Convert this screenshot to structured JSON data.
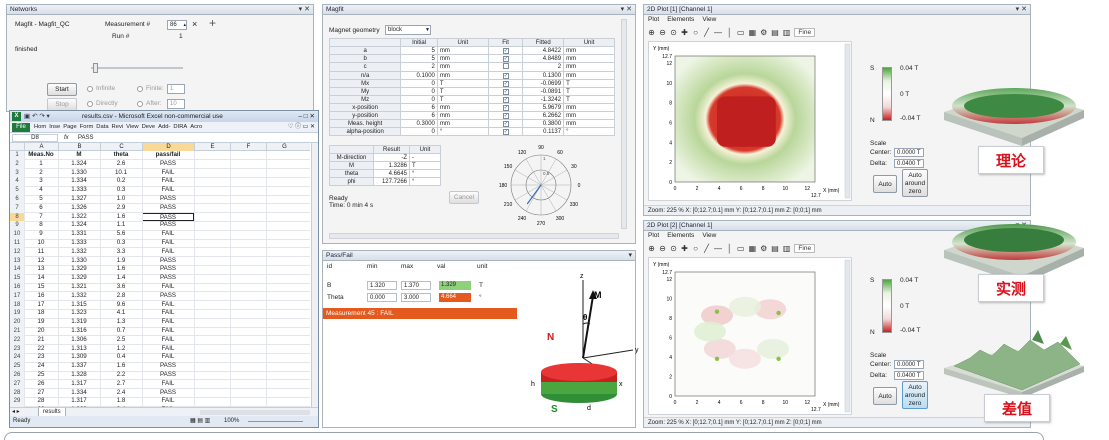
{
  "networks": {
    "title": "Networks",
    "node_name": "Magfit - Magfit_QC",
    "measurement_label": "Measurement #",
    "measurement_value": "86",
    "close_glyph": "×",
    "add_glyph": "+",
    "run_label": "Run #",
    "run_value": "1",
    "status": "finished",
    "start_label": "Start",
    "stop_label": "Stop",
    "infinite_label": "Infinite",
    "directly_label": "Directly",
    "finite_label": "Finite:",
    "finite_value": "1",
    "after_label": "After:",
    "after_value": "10"
  },
  "excel": {
    "title": "results.csv - Microsoft Excel non-commercial use",
    "ribbon_file": "File",
    "ribbon_tabs": [
      "Hom",
      "Inse",
      "Page",
      "Form",
      "Data",
      "Revi",
      "View",
      "Deve",
      "Add-",
      "DIRA",
      "Acro"
    ],
    "name_box": "D8",
    "fx": "fx",
    "formula_value": "PASS",
    "col_letters": [
      "A",
      "B",
      "C",
      "D",
      "E",
      "F",
      "G"
    ],
    "headers": [
      "Meas.No",
      "M",
      "theta",
      "pass/fail"
    ],
    "rows": [
      [
        "1",
        "1.324",
        "2.6",
        "PASS"
      ],
      [
        "2",
        "1.330",
        "10.1",
        "FAIL"
      ],
      [
        "3",
        "1.334",
        "0.2",
        "FAIL"
      ],
      [
        "4",
        "1.333",
        "0.3",
        "FAIL"
      ],
      [
        "5",
        "1.327",
        "1.0",
        "PASS"
      ],
      [
        "6",
        "1.326",
        "2.9",
        "PASS"
      ],
      [
        "7",
        "1.322",
        "1.6",
        "PASS"
      ],
      [
        "8",
        "1.324",
        "1.1",
        "PASS"
      ],
      [
        "9",
        "1.331",
        "5.6",
        "FAIL"
      ],
      [
        "10",
        "1.333",
        "0.3",
        "FAIL"
      ],
      [
        "11",
        "1.332",
        "3.3",
        "FAIL"
      ],
      [
        "12",
        "1.330",
        "1.9",
        "PASS"
      ],
      [
        "13",
        "1.329",
        "1.6",
        "PASS"
      ],
      [
        "14",
        "1.329",
        "1.4",
        "PASS"
      ],
      [
        "15",
        "1.321",
        "3.6",
        "FAIL"
      ],
      [
        "16",
        "1.332",
        "2.8",
        "PASS"
      ],
      [
        "17",
        "1.315",
        "9.6",
        "FAIL"
      ],
      [
        "18",
        "1.323",
        "4.1",
        "FAIL"
      ],
      [
        "19",
        "1.319",
        "1.3",
        "FAIL"
      ],
      [
        "20",
        "1.316",
        "0.7",
        "FAIL"
      ],
      [
        "21",
        "1.306",
        "2.5",
        "FAIL"
      ],
      [
        "22",
        "1.313",
        "1.2",
        "FAIL"
      ],
      [
        "23",
        "1.309",
        "0.4",
        "FAIL"
      ],
      [
        "24",
        "1.337",
        "1.6",
        "PASS"
      ],
      [
        "25",
        "1.328",
        "2.2",
        "PASS"
      ],
      [
        "26",
        "1.317",
        "2.7",
        "FAIL"
      ],
      [
        "27",
        "1.334",
        "2.4",
        "PASS"
      ],
      [
        "28",
        "1.317",
        "1.8",
        "FAIL"
      ],
      [
        "29",
        "1.303",
        "3.4",
        "FAIL"
      ]
    ],
    "sheet_tab": "results",
    "status_ready": "Ready",
    "zoom": "100%"
  },
  "magfit": {
    "title": "Magfit",
    "geometry_label": "Magnet geometry",
    "geometry_value": "block",
    "param_headers": [
      "",
      "Initial",
      "Unit",
      "Fit",
      "Fitted",
      "Unit"
    ],
    "params": [
      {
        "name": "a",
        "initial": "5",
        "unit": "mm",
        "fit": true,
        "fitted": "4.8422",
        "funit": "mm"
      },
      {
        "name": "b",
        "initial": "5",
        "unit": "mm",
        "fit": true,
        "fitted": "4.8489",
        "funit": "mm"
      },
      {
        "name": "c",
        "initial": "2",
        "unit": "mm",
        "fit": false,
        "fitted": "2",
        "funit": "mm"
      },
      {
        "name": "n/a",
        "initial": "0.1000",
        "unit": "mm",
        "fit": true,
        "fitted": "0.1300",
        "funit": "mm"
      },
      {
        "name": "Mx",
        "initial": "0",
        "unit": "T",
        "fit": true,
        "fitted": "-0.0699",
        "funit": "T"
      },
      {
        "name": "My",
        "initial": "0",
        "unit": "T",
        "fit": true,
        "fitted": "-0.0891",
        "funit": "T"
      },
      {
        "name": "Mz",
        "initial": "0",
        "unit": "T",
        "fit": true,
        "fitted": "-1.3242",
        "funit": "T"
      },
      {
        "name": "x-position",
        "initial": "6",
        "unit": "mm",
        "fit": true,
        "fitted": "5.9679",
        "funit": "mm"
      },
      {
        "name": "y-position",
        "initial": "6",
        "unit": "mm",
        "fit": true,
        "fitted": "6.2662",
        "funit": "mm"
      },
      {
        "name": "Meas. height",
        "initial": "0.3000",
        "unit": "mm",
        "fit": true,
        "fitted": "0.3800",
        "funit": "mm"
      },
      {
        "name": "alpha-position",
        "initial": "0",
        "unit": "°",
        "fit": true,
        "fitted": "0.1137",
        "funit": "°"
      }
    ],
    "result_headers": [
      "",
      "Result",
      "Unit"
    ],
    "results": [
      {
        "name": "M-direction",
        "value": "-Z",
        "unit": "-"
      },
      {
        "name": "M",
        "value": "1.3286",
        "unit": "T"
      },
      {
        "name": "theta",
        "value": "4.6645",
        "unit": "°"
      },
      {
        "name": "phi",
        "value": "127.7266",
        "unit": "°"
      }
    ],
    "ready_label": "Ready",
    "time_label": "Time: 0 min 4 s",
    "cancel_label": "Cancel",
    "polar_labels": [
      "90",
      "60",
      "30",
      "0",
      "330",
      "300",
      "270",
      "240",
      "210",
      "180",
      "150",
      "120"
    ],
    "polar_radii": [
      "0.5",
      "1"
    ]
  },
  "passfail": {
    "title": "Pass/Fail",
    "headers": [
      "id",
      "min",
      "max",
      "val",
      "unit"
    ],
    "rows": [
      {
        "id": "B",
        "min": "1.320",
        "max": "1.370",
        "val": "1.329",
        "unit": "T",
        "ok": true
      },
      {
        "id": "Theta",
        "min": "0.000",
        "max": "3.000",
        "val": "4.664",
        "unit": "°",
        "ok": false
      }
    ],
    "status": "Measurement 45 : FAIL"
  },
  "diagram": {
    "z": "z",
    "y": "y",
    "x": "x",
    "M": "M",
    "theta": "θ",
    "N": "N",
    "S": "S",
    "h": "h",
    "d": "d"
  },
  "plot1": {
    "title": "2D Plot [1] [Channel 1]",
    "menu": [
      "Plot",
      "Elements",
      "View"
    ],
    "fine_label": "Fine",
    "y_unit": "Y (mm)",
    "x_unit": "X (mm)",
    "y_ticks": [
      "12.7",
      "12",
      "10",
      "8",
      "6",
      "4",
      "2",
      "0"
    ],
    "x_ticks": [
      "0",
      "2",
      "4",
      "6",
      "8",
      "10",
      "12"
    ],
    "x_max": "12.7",
    "legend_top": "0.04 T",
    "legend_mid": "0 T",
    "legend_bot": "-0.04 T",
    "legend_S": "S",
    "legend_N": "N",
    "scale_label": "Scale",
    "center_label": "Center:",
    "center_value": "0.0000 T",
    "delta_label": "Delta:",
    "delta_value": "0.0400 T",
    "auto_label": "Auto",
    "auto_zero_label": "Auto around zero",
    "status": "Zoom: 225 %      X: [0;12.7;0.1] mm Y: [0;12.7;0.1] mm Z: [0;0;1] mm"
  },
  "plot2": {
    "title": "2D Plot [2] [Channel 1]",
    "menu": [
      "Plot",
      "Elements",
      "View"
    ],
    "fine_label": "Fine",
    "y_unit": "Y (mm)",
    "x_unit": "X (mm)",
    "y_ticks": [
      "12.7",
      "12",
      "10",
      "8",
      "6",
      "4",
      "2",
      "0"
    ],
    "x_ticks": [
      "0",
      "2",
      "4",
      "6",
      "8",
      "10",
      "12"
    ],
    "x_max": "12.7",
    "legend_top": "0.04 T",
    "legend_mid": "0 T",
    "legend_bot": "-0.04 T",
    "legend_S": "S",
    "legend_N": "N",
    "scale_label": "Scale",
    "center_label": "Center:",
    "center_value": "0.0000 T",
    "delta_label": "Delta:",
    "delta_value": "0.0400 T",
    "auto_label": "Auto",
    "auto_zero_label": "Auto around zero",
    "status": "Zoom: 225 %      X: [0;12.7;0.1] mm Y: [0;12.7;0.1] mm Z: [0;0;1] mm"
  },
  "captions": {
    "theory": "理论",
    "measured": "实测",
    "difference": "差值"
  }
}
